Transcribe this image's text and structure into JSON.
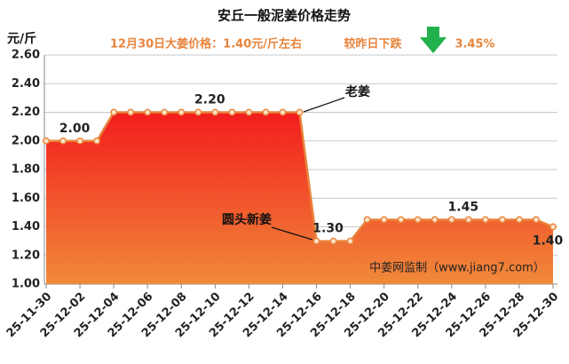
{
  "chart_data": {
    "type": "area-line",
    "title": "安丘一般泥姜价格走势",
    "subtitle": "12月30日大姜价格：1.40元/斤左右",
    "change_text": "较昨日下跌",
    "change_value": "3.45%",
    "y_label": "元/斤",
    "source": "中姜网监制（www.jiang7.com）",
    "annotations": [
      {
        "text": "老姜"
      },
      {
        "text": "圆头新姜"
      }
    ],
    "categories": [
      "25-11-30",
      null,
      "25-12-02",
      null,
      "25-12-04",
      null,
      "25-12-06",
      null,
      "25-12-08",
      null,
      "25-12-10",
      null,
      "25-12-12",
      null,
      "25-12-14",
      null,
      "25-12-16",
      null,
      "25-12-18",
      null,
      "25-12-20",
      null,
      "25-12-22",
      null,
      "25-12-24",
      null,
      "25-12-26",
      null,
      "25-12-28",
      null,
      "25-12-30"
    ],
    "values": [
      2,
      2,
      2,
      2,
      2.2,
      2.2,
      2.2,
      2.2,
      2.2,
      2.2,
      2.2,
      2.2,
      2.2,
      2.2,
      2.2,
      2.2,
      1.3,
      1.3,
      1.3,
      1.45,
      1.45,
      1.45,
      1.45,
      1.45,
      1.45,
      1.45,
      1.45,
      1.45,
      1.45,
      1.45,
      1.4
    ],
    "value_labels": [
      null,
      null,
      "2.00",
      null,
      null,
      null,
      null,
      null,
      null,
      null,
      "2.20",
      null,
      null,
      null,
      null,
      null,
      null,
      "1.30",
      null,
      null,
      null,
      null,
      null,
      null,
      null,
      "1.45",
      null,
      null,
      null,
      null,
      "1.40"
    ],
    "color": "#e8843c",
    "ylim": [
      1,
      2.6
    ],
    "yticks": [
      {
        "value": 1,
        "label": "1.00"
      },
      {
        "value": 1.2,
        "label": "1.20"
      },
      {
        "value": 1.4,
        "label": "1.40"
      },
      {
        "value": 1.6,
        "label": "1.60"
      },
      {
        "value": 1.8,
        "label": "1.80"
      },
      {
        "value": 2,
        "label": "2.00"
      },
      {
        "value": 2.2,
        "label": "2.20"
      },
      {
        "value": 2.4,
        "label": "2.40"
      },
      {
        "value": 2.6,
        "label": "2.60"
      }
    ],
    "grid": true
  }
}
